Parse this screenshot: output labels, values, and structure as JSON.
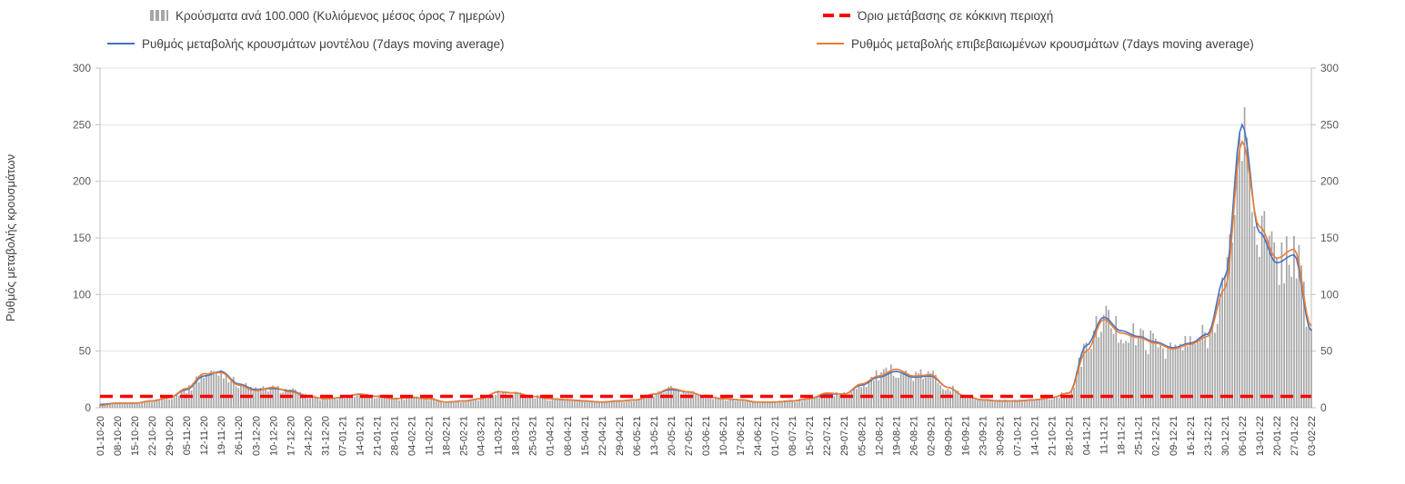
{
  "legend": {
    "bars": "Κρούσματα ανά 100.000 (Κυλιόμενος μέσος όρος 7 ημερών)",
    "threshold": "Όριο μετάβασης σε κόκκινη περιοχή",
    "model": "Ρυθμός μεταβολής κρουσμάτων μοντέλου (7days moving average)",
    "confirmed": "Ρυθμός μεταβολής επιβεβαιωμένων κρουσμάτων (7days moving average)"
  },
  "chart_data": {
    "type": "bar+line",
    "title": "",
    "xlabel": "",
    "ylabel": "Ρυθμός μεταβολής κρουσμάτων",
    "ylim": [
      0,
      300
    ],
    "yticks": [
      0,
      50,
      100,
      150,
      200,
      250,
      300
    ],
    "grid": true,
    "legend_position": "top",
    "x_tick_frequency": "weekly",
    "categories": [
      "01-10-20",
      "08-10-20",
      "15-10-20",
      "22-10-20",
      "29-10-20",
      "05-11-20",
      "12-11-20",
      "19-11-20",
      "26-11-20",
      "03-12-20",
      "10-12-20",
      "17-12-20",
      "24-12-20",
      "31-12-20",
      "07-01-21",
      "14-01-21",
      "21-01-21",
      "28-01-21",
      "04-02-21",
      "11-02-21",
      "18-02-21",
      "25-02-21",
      "04-03-21",
      "11-03-21",
      "18-03-21",
      "25-03-21",
      "01-04-21",
      "08-04-21",
      "15-04-21",
      "22-04-21",
      "29-04-21",
      "06-05-21",
      "13-05-21",
      "20-05-21",
      "27-05-21",
      "03-06-21",
      "10-06-21",
      "17-06-21",
      "24-06-21",
      "01-07-21",
      "08-07-21",
      "15-07-21",
      "22-07-21",
      "29-07-21",
      "05-08-21",
      "12-08-21",
      "19-08-21",
      "26-08-21",
      "02-09-21",
      "09-09-21",
      "16-09-21",
      "23-09-21",
      "30-09-21",
      "07-10-21",
      "14-10-21",
      "21-10-21",
      "28-10-21",
      "04-11-21",
      "11-11-21",
      "18-11-21",
      "25-11-21",
      "02-12-21",
      "09-12-21",
      "16-12-21",
      "23-12-21",
      "30-12-21",
      "06-01-22",
      "13-01-22",
      "20-01-22",
      "27-01-22",
      "03-02-22"
    ],
    "series": [
      {
        "name": "Κρούσματα ανά 100.000 (Κυλιόμενος μέσος όρος 7 ημερών)",
        "type": "bar",
        "color": "#a6a6a6",
        "weekly_values": [
          3,
          4,
          4,
          6,
          9,
          16,
          29,
          32,
          21,
          16,
          17,
          15,
          10,
          8,
          9,
          12,
          10,
          8,
          9,
          8,
          5,
          6,
          8,
          14,
          13,
          10,
          8,
          7,
          6,
          5,
          6,
          7,
          12,
          17,
          14,
          10,
          8,
          7,
          5,
          5,
          6,
          8,
          12,
          12,
          21,
          28,
          33,
          28,
          29,
          18,
          10,
          7,
          6,
          6,
          7,
          9,
          13,
          52,
          79,
          67,
          62,
          57,
          52,
          56,
          64,
          110,
          242,
          158,
          130,
          138,
          70
        ]
      },
      {
        "name": "Ρυθμός μεταβολής κρουσμάτων μοντέλου (7days moving average)",
        "type": "line",
        "color": "#4472c4",
        "weekly_values": [
          3,
          4,
          4,
          6,
          9,
          16,
          28,
          32,
          21,
          16,
          17,
          15,
          10,
          8,
          9,
          12,
          10,
          8,
          9,
          8,
          5,
          6,
          8,
          14,
          13,
          10,
          8,
          7,
          6,
          5,
          6,
          7,
          12,
          16,
          14,
          10,
          8,
          7,
          5,
          5,
          6,
          8,
          12,
          12,
          20,
          27,
          32,
          27,
          28,
          18,
          10,
          7,
          6,
          6,
          7,
          9,
          13,
          55,
          80,
          68,
          63,
          58,
          53,
          57,
          65,
          115,
          250,
          155,
          128,
          135,
          68
        ]
      },
      {
        "name": "Ρυθμός μεταβολής επιβεβαιωμένων κρουσμάτων (7days moving average)",
        "type": "line",
        "color": "#ed7d31",
        "weekly_values": [
          2,
          4,
          4,
          6,
          9,
          17,
          30,
          31,
          20,
          15,
          18,
          14,
          10,
          8,
          9,
          12,
          10,
          8,
          9,
          8,
          5,
          6,
          8,
          14,
          13,
          10,
          8,
          7,
          6,
          5,
          6,
          7,
          12,
          17,
          14,
          10,
          8,
          7,
          5,
          5,
          6,
          8,
          13,
          12,
          21,
          28,
          34,
          28,
          29,
          18,
          10,
          7,
          6,
          6,
          7,
          9,
          13,
          50,
          78,
          66,
          62,
          57,
          52,
          56,
          63,
          105,
          235,
          160,
          132,
          140,
          72
        ]
      },
      {
        "name": "Όριο μετάβασης σε κόκκινη περιοχή",
        "type": "threshold",
        "color": "#ff0000",
        "value": 10
      }
    ]
  }
}
